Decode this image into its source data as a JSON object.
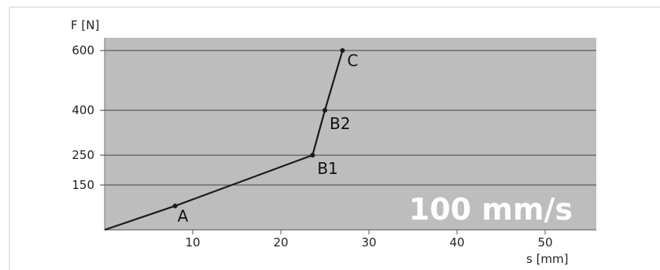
{
  "chart_data": {
    "type": "line",
    "ylabel": "F [N]",
    "xlabel": "s [mm]",
    "annotation": "100 mm/s",
    "xlim": [
      0,
      55
    ],
    "ylim": [
      0,
      600
    ],
    "x_ticks": [
      10,
      20,
      30,
      40,
      50
    ],
    "y_ticks": [
      150,
      250,
      400,
      600
    ],
    "grid": "horizontal",
    "colors": {
      "plot_bg": "#bdbdbd",
      "line": "#1a1a1a",
      "grid": "#444444"
    },
    "series": [
      {
        "x": [
          0,
          8,
          23.6,
          25,
          27
        ],
        "y": [
          0,
          80,
          250,
          400,
          600
        ]
      }
    ],
    "points": [
      {
        "label": "A",
        "x": 8,
        "y": 80
      },
      {
        "label": "B1",
        "x": 23.6,
        "y": 250
      },
      {
        "label": "B2",
        "x": 25,
        "y": 400
      },
      {
        "label": "C",
        "x": 27,
        "y": 600
      }
    ]
  }
}
